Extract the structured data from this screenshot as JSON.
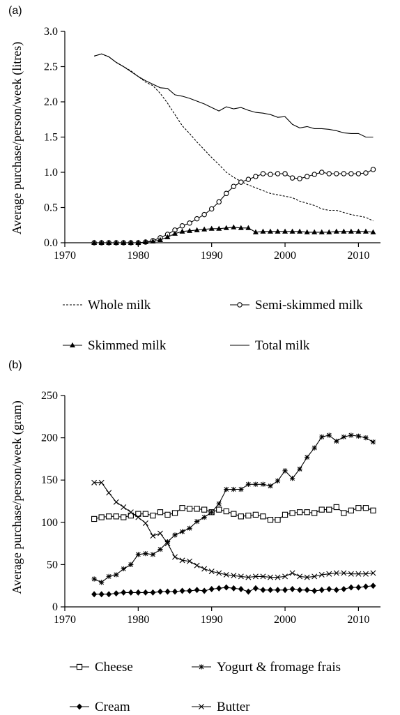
{
  "chart_data": [
    {
      "type": "line",
      "panel_label": "(a)",
      "title": "",
      "xlabel": "",
      "ylabel": "Average purchase/person/week (litres)",
      "xlim": [
        1970,
        2013
      ],
      "ylim": [
        0,
        3.0
      ],
      "xticks": [
        1970,
        1980,
        1990,
        2000,
        2010
      ],
      "yticks": [
        "0.0",
        "0.5",
        "1.0",
        "1.5",
        "2.0",
        "2.5",
        "3.0"
      ],
      "grid": false,
      "legend_position": "below",
      "series": [
        {
          "name": "Whole milk",
          "marker": "none",
          "line": "dashed",
          "x": [
            1974,
            1975,
            1976,
            1977,
            1978,
            1979,
            1980,
            1981,
            1982,
            1983,
            1984,
            1985,
            1986,
            1987,
            1988,
            1989,
            1990,
            1991,
            1992,
            1993,
            1994,
            1995,
            1996,
            1997,
            1998,
            1999,
            2000,
            2001,
            2002,
            2003,
            2004,
            2005,
            2006,
            2007,
            2008,
            2009,
            2010,
            2011,
            2012
          ],
          "values": [
            2.65,
            2.68,
            2.64,
            2.56,
            2.5,
            2.44,
            2.36,
            2.28,
            2.23,
            2.12,
            1.98,
            1.82,
            1.66,
            1.55,
            1.43,
            1.32,
            1.21,
            1.11,
            1.0,
            0.93,
            0.87,
            0.82,
            0.78,
            0.74,
            0.7,
            0.68,
            0.66,
            0.64,
            0.59,
            0.56,
            0.53,
            0.48,
            0.46,
            0.46,
            0.43,
            0.4,
            0.38,
            0.36,
            0.31
          ]
        },
        {
          "name": "Semi-skimmed milk",
          "marker": "circle",
          "line": "solid",
          "x": [
            1974,
            1975,
            1976,
            1977,
            1978,
            1979,
            1980,
            1981,
            1982,
            1983,
            1984,
            1985,
            1986,
            1987,
            1988,
            1989,
            1990,
            1991,
            1992,
            1993,
            1994,
            1995,
            1996,
            1997,
            1998,
            1999,
            2000,
            2001,
            2002,
            2003,
            2004,
            2005,
            2006,
            2007,
            2008,
            2009,
            2010,
            2011,
            2012
          ],
          "values": [
            0,
            0,
            0,
            0,
            0,
            0,
            0,
            0.01,
            0.03,
            0.07,
            0.12,
            0.18,
            0.24,
            0.28,
            0.34,
            0.4,
            0.48,
            0.58,
            0.7,
            0.8,
            0.86,
            0.9,
            0.94,
            0.98,
            0.97,
            0.98,
            0.98,
            0.92,
            0.91,
            0.94,
            0.97,
            1.0,
            0.98,
            0.98,
            0.98,
            0.98,
            0.98,
            0.99,
            1.04
          ]
        },
        {
          "name": "Skimmed milk",
          "marker": "triangle",
          "line": "solid",
          "x": [
            1974,
            1975,
            1976,
            1977,
            1978,
            1979,
            1980,
            1981,
            1982,
            1983,
            1984,
            1985,
            1986,
            1987,
            1988,
            1989,
            1990,
            1991,
            1992,
            1993,
            1994,
            1995,
            1996,
            1997,
            1998,
            1999,
            2000,
            2001,
            2002,
            2003,
            2004,
            2005,
            2006,
            2007,
            2008,
            2009,
            2010,
            2011,
            2012
          ],
          "values": [
            0,
            0,
            0,
            0,
            0,
            0,
            0,
            0.01,
            0.02,
            0.04,
            0.08,
            0.13,
            0.16,
            0.17,
            0.18,
            0.19,
            0.2,
            0.2,
            0.21,
            0.22,
            0.21,
            0.21,
            0.15,
            0.16,
            0.16,
            0.16,
            0.16,
            0.16,
            0.16,
            0.15,
            0.15,
            0.15,
            0.15,
            0.16,
            0.16,
            0.16,
            0.16,
            0.16,
            0.15
          ]
        },
        {
          "name": "Total milk",
          "marker": "none",
          "line": "solid",
          "x": [
            1974,
            1975,
            1976,
            1977,
            1978,
            1979,
            1980,
            1981,
            1982,
            1983,
            1984,
            1985,
            1986,
            1987,
            1988,
            1989,
            1990,
            1991,
            1992,
            1993,
            1994,
            1995,
            1996,
            1997,
            1998,
            1999,
            2000,
            2001,
            2002,
            2003,
            2004,
            2005,
            2006,
            2007,
            2008,
            2009,
            2010,
            2011,
            2012
          ],
          "values": [
            2.65,
            2.68,
            2.64,
            2.56,
            2.5,
            2.43,
            2.36,
            2.3,
            2.25,
            2.2,
            2.19,
            2.1,
            2.08,
            2.05,
            2.01,
            1.97,
            1.92,
            1.87,
            1.93,
            1.9,
            1.92,
            1.88,
            1.85,
            1.84,
            1.82,
            1.78,
            1.79,
            1.68,
            1.63,
            1.65,
            1.62,
            1.62,
            1.61,
            1.59,
            1.56,
            1.55,
            1.55,
            1.5,
            1.5
          ]
        }
      ]
    },
    {
      "type": "line",
      "panel_label": "(b)",
      "title": "",
      "xlabel": "",
      "ylabel": "Average purchase/person/week (gram)",
      "xlim": [
        1970,
        2013
      ],
      "ylim": [
        0,
        250
      ],
      "xticks": [
        1970,
        1980,
        1990,
        2000,
        2010
      ],
      "yticks": [
        "0",
        "50",
        "100",
        "150",
        "200",
        "250"
      ],
      "grid": false,
      "legend_position": "below",
      "series": [
        {
          "name": "Cheese",
          "marker": "square",
          "line": "solid",
          "x": [
            1974,
            1975,
            1976,
            1977,
            1978,
            1979,
            1980,
            1981,
            1982,
            1983,
            1984,
            1985,
            1986,
            1987,
            1988,
            1989,
            1990,
            1991,
            1992,
            1993,
            1994,
            1995,
            1996,
            1997,
            1998,
            1999,
            2000,
            2001,
            2002,
            2003,
            2004,
            2005,
            2006,
            2007,
            2008,
            2009,
            2010,
            2011,
            2012
          ],
          "values": [
            104,
            106,
            107,
            107,
            106,
            108,
            110,
            110,
            108,
            112,
            109,
            111,
            117,
            116,
            116,
            115,
            112,
            115,
            113,
            110,
            107,
            108,
            109,
            107,
            103,
            103,
            109,
            111,
            112,
            112,
            111,
            115,
            115,
            118,
            111,
            114,
            117,
            117,
            114
          ]
        },
        {
          "name": "Yogurt & fromage frais",
          "marker": "asterisk",
          "line": "solid",
          "x": [
            1974,
            1975,
            1976,
            1977,
            1978,
            1979,
            1980,
            1981,
            1982,
            1983,
            1984,
            1985,
            1986,
            1987,
            1988,
            1989,
            1990,
            1991,
            1992,
            1993,
            1994,
            1995,
            1996,
            1997,
            1998,
            1999,
            2000,
            2001,
            2002,
            2003,
            2004,
            2005,
            2006,
            2007,
            2008,
            2009,
            2010,
            2011,
            2012
          ],
          "values": [
            33,
            29,
            36,
            38,
            45,
            50,
            62,
            63,
            62,
            68,
            77,
            85,
            89,
            93,
            101,
            106,
            112,
            122,
            139,
            139,
            139,
            145,
            145,
            145,
            143,
            149,
            161,
            152,
            163,
            177,
            188,
            201,
            203,
            196,
            201,
            203,
            202,
            200,
            195
          ]
        },
        {
          "name": "Cream",
          "marker": "diamond",
          "line": "solid",
          "x": [
            1974,
            1975,
            1976,
            1977,
            1978,
            1979,
            1980,
            1981,
            1982,
            1983,
            1984,
            1985,
            1986,
            1987,
            1988,
            1989,
            1990,
            1991,
            1992,
            1993,
            1994,
            1995,
            1996,
            1997,
            1998,
            1999,
            2000,
            2001,
            2002,
            2003,
            2004,
            2005,
            2006,
            2007,
            2008,
            2009,
            2010,
            2011,
            2012
          ],
          "values": [
            15,
            15,
            15,
            16,
            17,
            17,
            17,
            17,
            17,
            18,
            18,
            18,
            19,
            19,
            20,
            19,
            21,
            22,
            23,
            22,
            21,
            18,
            22,
            20,
            20,
            20,
            20,
            21,
            20,
            20,
            19,
            20,
            21,
            20,
            21,
            23,
            23,
            24,
            25
          ]
        },
        {
          "name": "Butter",
          "marker": "cross",
          "line": "solid",
          "x": [
            1974,
            1975,
            1976,
            1977,
            1978,
            1979,
            1980,
            1981,
            1982,
            1983,
            1984,
            1985,
            1986,
            1987,
            1988,
            1989,
            1990,
            1991,
            1992,
            1993,
            1994,
            1995,
            1996,
            1997,
            1998,
            1999,
            2000,
            2001,
            2002,
            2003,
            2004,
            2005,
            2006,
            2007,
            2008,
            2009,
            2010,
            2011,
            2012
          ],
          "values": [
            147,
            147,
            135,
            124,
            118,
            112,
            106,
            99,
            84,
            87,
            75,
            59,
            55,
            54,
            49,
            45,
            42,
            40,
            38,
            37,
            36,
            35,
            36,
            36,
            35,
            35,
            36,
            40,
            36,
            35,
            36,
            38,
            39,
            40,
            40,
            39,
            39,
            39,
            40
          ]
        }
      ]
    }
  ]
}
